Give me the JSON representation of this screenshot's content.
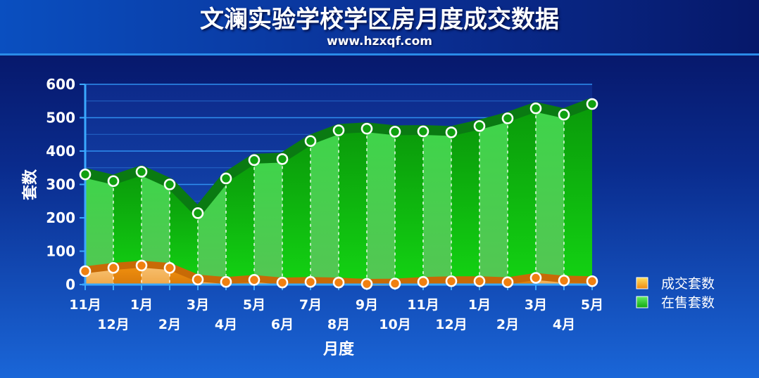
{
  "chart_data": {
    "type": "area",
    "title": "文澜实验学校学区房月度成交数据",
    "subtitle": "www.hzxqf.com",
    "xlabel": "月度",
    "ylabel": "套数",
    "ylim": [
      0,
      600
    ],
    "yticks": [
      0,
      100,
      200,
      300,
      400,
      500,
      600
    ],
    "categories": [
      "11月",
      "12月",
      "1月",
      "2月",
      "3月",
      "4月",
      "5月",
      "6月",
      "7月",
      "8月",
      "9月",
      "10月",
      "11月",
      "12月",
      "1月",
      "2月",
      "3月",
      "4月",
      "5月"
    ],
    "series": [
      {
        "name": "在售套数",
        "color": "#22cc22",
        "values": [
          330,
          310,
          338,
          300,
          214,
          318,
          373,
          376,
          430,
          462,
          467,
          458,
          459,
          456,
          475,
          498,
          528,
          509,
          541
        ]
      },
      {
        "name": "成交套数",
        "color": "#f29a1e",
        "values": [
          40,
          50,
          57,
          50,
          15,
          8,
          14,
          6,
          8,
          6,
          2,
          3,
          8,
          10,
          10,
          7,
          20,
          12,
          10
        ]
      }
    ],
    "legend_position": "right",
    "grid": true
  }
}
